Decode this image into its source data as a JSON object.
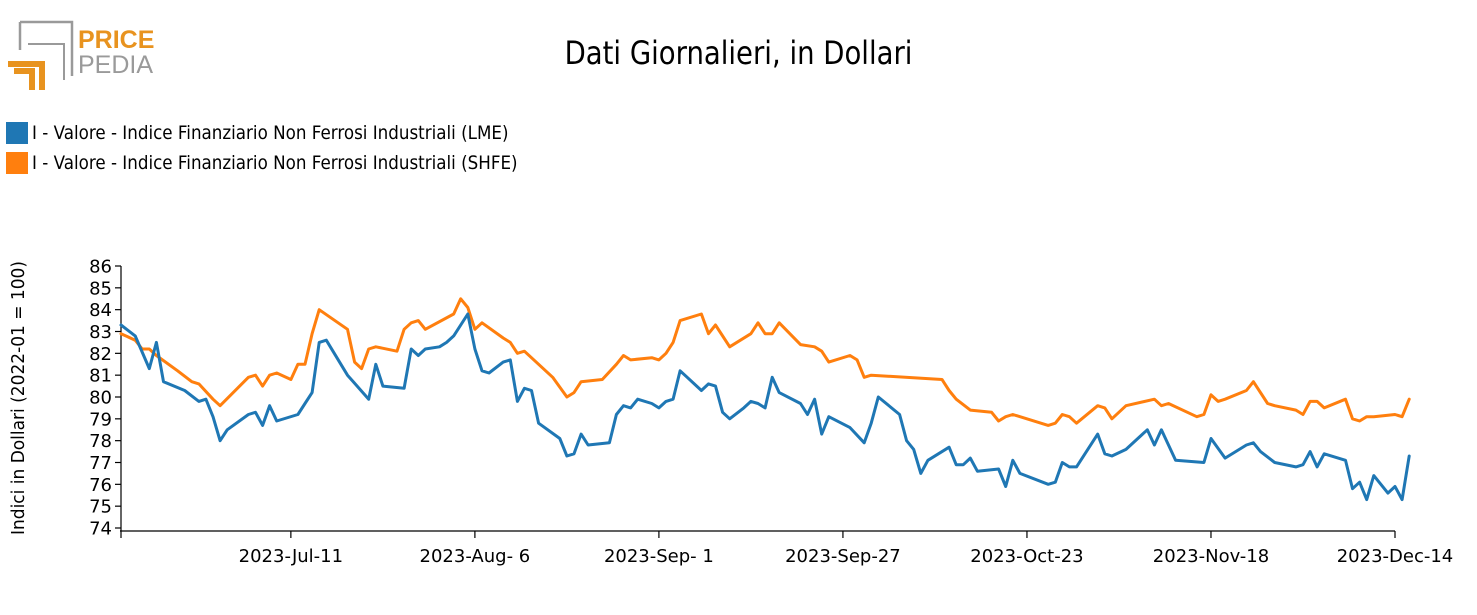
{
  "logo": {
    "line1": "PRICE",
    "line2": "PEDIA"
  },
  "colors": {
    "lme": "#1f77b4",
    "shfe": "#ff7f0e",
    "logo_orange": "#e8931f",
    "logo_grey": "#9a9a9a"
  },
  "chart_data": {
    "type": "line",
    "title": "Dati Giornalieri, in Dollari",
    "ylabel": "Indici in Dollari (2022-01 = 100)",
    "xlabel": "",
    "ylim": [
      74,
      86
    ],
    "yticks": [
      "74",
      "75",
      "76",
      "77",
      "78",
      "79",
      "80",
      "81",
      "82",
      "83",
      "84",
      "85",
      "86"
    ],
    "xlim": [
      "2023-06-17",
      "2023-12-14"
    ],
    "xticks": [
      {
        "date": "2023-07-11",
        "label": "2023-Jul-11"
      },
      {
        "date": "2023-08-06",
        "label": "2023-Aug- 6"
      },
      {
        "date": "2023-09-01",
        "label": "2023-Sep- 1"
      },
      {
        "date": "2023-09-27",
        "label": "2023-Sep-27"
      },
      {
        "date": "2023-10-23",
        "label": "2023-Oct-23"
      },
      {
        "date": "2023-11-18",
        "label": "2023-Nov-18"
      },
      {
        "date": "2023-12-14",
        "label": "2023-Dec-14"
      }
    ],
    "legend_position": "top-left",
    "series": [
      {
        "name": "I - Valore - Indice Finanziario Non Ferrosi Industriali (LME)",
        "color": "#1f77b4",
        "points": [
          [
            "2023-06-17",
            83.3
          ],
          [
            "2023-06-19",
            82.8
          ],
          [
            "2023-06-21",
            81.3
          ],
          [
            "2023-06-22",
            82.5
          ],
          [
            "2023-06-23",
            80.7
          ],
          [
            "2023-06-26",
            80.3
          ],
          [
            "2023-06-28",
            79.8
          ],
          [
            "2023-06-29",
            79.9
          ],
          [
            "2023-06-30",
            79.1
          ],
          [
            "2023-07-01",
            78.0
          ],
          [
            "2023-07-02",
            78.5
          ],
          [
            "2023-07-05",
            79.2
          ],
          [
            "2023-07-06",
            79.3
          ],
          [
            "2023-07-07",
            78.7
          ],
          [
            "2023-07-08",
            79.6
          ],
          [
            "2023-07-09",
            78.9
          ],
          [
            "2023-07-12",
            79.2
          ],
          [
            "2023-07-13",
            79.7
          ],
          [
            "2023-07-14",
            80.2
          ],
          [
            "2023-07-15",
            82.5
          ],
          [
            "2023-07-16",
            82.6
          ],
          [
            "2023-07-19",
            81.0
          ],
          [
            "2023-07-22",
            79.9
          ],
          [
            "2023-07-23",
            81.5
          ],
          [
            "2023-07-24",
            80.5
          ],
          [
            "2023-07-27",
            80.4
          ],
          [
            "2023-07-28",
            82.2
          ],
          [
            "2023-07-29",
            81.9
          ],
          [
            "2023-07-30",
            82.2
          ],
          [
            "2023-08-01",
            82.3
          ],
          [
            "2023-08-02",
            82.5
          ],
          [
            "2023-08-03",
            82.8
          ],
          [
            "2023-08-05",
            83.8
          ],
          [
            "2023-08-06",
            82.2
          ],
          [
            "2023-08-07",
            81.2
          ],
          [
            "2023-08-08",
            81.1
          ],
          [
            "2023-08-10",
            81.6
          ],
          [
            "2023-08-11",
            81.7
          ],
          [
            "2023-08-12",
            79.8
          ],
          [
            "2023-08-13",
            80.4
          ],
          [
            "2023-08-14",
            80.3
          ],
          [
            "2023-08-15",
            78.8
          ],
          [
            "2023-08-18",
            78.1
          ],
          [
            "2023-08-19",
            77.3
          ],
          [
            "2023-08-20",
            77.4
          ],
          [
            "2023-08-21",
            78.3
          ],
          [
            "2023-08-22",
            77.8
          ],
          [
            "2023-08-25",
            77.9
          ],
          [
            "2023-08-26",
            79.2
          ],
          [
            "2023-08-27",
            79.6
          ],
          [
            "2023-08-28",
            79.5
          ],
          [
            "2023-08-29",
            79.9
          ],
          [
            "2023-08-31",
            79.7
          ],
          [
            "2023-09-01",
            79.5
          ],
          [
            "2023-09-02",
            79.8
          ],
          [
            "2023-09-03",
            79.9
          ],
          [
            "2023-09-04",
            81.2
          ],
          [
            "2023-09-05",
            80.9
          ],
          [
            "2023-09-07",
            80.3
          ],
          [
            "2023-09-08",
            80.6
          ],
          [
            "2023-09-09",
            80.5
          ],
          [
            "2023-09-10",
            79.3
          ],
          [
            "2023-09-11",
            79.0
          ],
          [
            "2023-09-13",
            79.5
          ],
          [
            "2023-09-14",
            79.8
          ],
          [
            "2023-09-15",
            79.7
          ],
          [
            "2023-09-16",
            79.5
          ],
          [
            "2023-09-17",
            80.9
          ],
          [
            "2023-09-18",
            80.2
          ],
          [
            "2023-09-21",
            79.7
          ],
          [
            "2023-09-22",
            79.2
          ],
          [
            "2023-09-23",
            79.9
          ],
          [
            "2023-09-24",
            78.3
          ],
          [
            "2023-09-25",
            79.1
          ],
          [
            "2023-09-28",
            78.6
          ],
          [
            "2023-09-30",
            77.9
          ],
          [
            "2023-10-01",
            78.8
          ],
          [
            "2023-10-02",
            80.0
          ],
          [
            "2023-10-05",
            79.2
          ],
          [
            "2023-10-06",
            78.0
          ],
          [
            "2023-10-07",
            77.6
          ],
          [
            "2023-10-08",
            76.5
          ],
          [
            "2023-10-09",
            77.1
          ],
          [
            "2023-10-12",
            77.7
          ],
          [
            "2023-10-13",
            76.9
          ],
          [
            "2023-10-14",
            76.9
          ],
          [
            "2023-10-15",
            77.2
          ],
          [
            "2023-10-16",
            76.6
          ],
          [
            "2023-10-19",
            76.7
          ],
          [
            "2023-10-20",
            75.9
          ],
          [
            "2023-10-21",
            77.1
          ],
          [
            "2023-10-22",
            76.5
          ],
          [
            "2023-10-26",
            76.0
          ],
          [
            "2023-10-27",
            76.1
          ],
          [
            "2023-10-28",
            77.0
          ],
          [
            "2023-10-29",
            76.8
          ],
          [
            "2023-10-30",
            76.8
          ],
          [
            "2023-11-02",
            78.3
          ],
          [
            "2023-11-03",
            77.4
          ],
          [
            "2023-11-04",
            77.3
          ],
          [
            "2023-11-06",
            77.6
          ],
          [
            "2023-11-09",
            78.5
          ],
          [
            "2023-11-10",
            77.8
          ],
          [
            "2023-11-11",
            78.5
          ],
          [
            "2023-11-13",
            77.1
          ],
          [
            "2023-11-17",
            77.0
          ],
          [
            "2023-11-18",
            78.1
          ],
          [
            "2023-11-20",
            77.2
          ],
          [
            "2023-11-23",
            77.8
          ],
          [
            "2023-11-24",
            77.9
          ],
          [
            "2023-11-25",
            77.5
          ],
          [
            "2023-11-27",
            77.0
          ],
          [
            "2023-11-30",
            76.8
          ],
          [
            "2023-12-01",
            76.9
          ],
          [
            "2023-12-02",
            77.5
          ],
          [
            "2023-12-03",
            76.8
          ],
          [
            "2023-12-04",
            77.4
          ],
          [
            "2023-12-07",
            77.1
          ],
          [
            "2023-12-08",
            75.8
          ],
          [
            "2023-12-09",
            76.1
          ],
          [
            "2023-12-10",
            75.3
          ],
          [
            "2023-12-11",
            76.4
          ],
          [
            "2023-12-13",
            75.6
          ],
          [
            "2023-12-14",
            75.9
          ],
          [
            "2023-12-15",
            75.3
          ],
          [
            "2023-12-16",
            77.3
          ]
        ]
      },
      {
        "name": "I - Valore - Indice Finanziario Non Ferrosi Industriali (SHFE)",
        "color": "#ff7f0e",
        "points": [
          [
            "2023-06-17",
            82.9
          ],
          [
            "2023-06-19",
            82.6
          ],
          [
            "2023-06-20",
            82.2
          ],
          [
            "2023-06-21",
            82.2
          ],
          [
            "2023-06-22",
            81.9
          ],
          [
            "2023-06-25",
            81.2
          ],
          [
            "2023-06-27",
            80.7
          ],
          [
            "2023-06-28",
            80.6
          ],
          [
            "2023-06-30",
            79.9
          ],
          [
            "2023-07-01",
            79.6
          ],
          [
            "2023-07-05",
            80.9
          ],
          [
            "2023-07-06",
            81.0
          ],
          [
            "2023-07-07",
            80.5
          ],
          [
            "2023-07-08",
            81.0
          ],
          [
            "2023-07-09",
            81.1
          ],
          [
            "2023-07-11",
            80.8
          ],
          [
            "2023-07-12",
            81.5
          ],
          [
            "2023-07-13",
            81.5
          ],
          [
            "2023-07-14",
            82.9
          ],
          [
            "2023-07-15",
            84.0
          ],
          [
            "2023-07-19",
            83.1
          ],
          [
            "2023-07-20",
            81.6
          ],
          [
            "2023-07-21",
            81.3
          ],
          [
            "2023-07-22",
            82.2
          ],
          [
            "2023-07-23",
            82.3
          ],
          [
            "2023-07-26",
            82.1
          ],
          [
            "2023-07-27",
            83.1
          ],
          [
            "2023-07-28",
            83.4
          ],
          [
            "2023-07-29",
            83.5
          ],
          [
            "2023-07-30",
            83.1
          ],
          [
            "2023-08-03",
            83.8
          ],
          [
            "2023-08-04",
            84.5
          ],
          [
            "2023-08-05",
            84.1
          ],
          [
            "2023-08-06",
            83.1
          ],
          [
            "2023-08-07",
            83.4
          ],
          [
            "2023-08-10",
            82.7
          ],
          [
            "2023-08-11",
            82.5
          ],
          [
            "2023-08-12",
            82.0
          ],
          [
            "2023-08-13",
            82.1
          ],
          [
            "2023-08-17",
            80.9
          ],
          [
            "2023-08-19",
            80.0
          ],
          [
            "2023-08-20",
            80.2
          ],
          [
            "2023-08-21",
            80.7
          ],
          [
            "2023-08-24",
            80.8
          ],
          [
            "2023-08-26",
            81.5
          ],
          [
            "2023-08-27",
            81.9
          ],
          [
            "2023-08-28",
            81.7
          ],
          [
            "2023-08-31",
            81.8
          ],
          [
            "2023-09-01",
            81.7
          ],
          [
            "2023-09-02",
            82.0
          ],
          [
            "2023-09-03",
            82.5
          ],
          [
            "2023-09-04",
            83.5
          ],
          [
            "2023-09-07",
            83.8
          ],
          [
            "2023-09-08",
            82.9
          ],
          [
            "2023-09-09",
            83.3
          ],
          [
            "2023-09-11",
            82.3
          ],
          [
            "2023-09-14",
            82.9
          ],
          [
            "2023-09-15",
            83.4
          ],
          [
            "2023-09-16",
            82.9
          ],
          [
            "2023-09-17",
            82.9
          ],
          [
            "2023-09-18",
            83.4
          ],
          [
            "2023-09-21",
            82.4
          ],
          [
            "2023-09-23",
            82.3
          ],
          [
            "2023-09-24",
            82.1
          ],
          [
            "2023-09-25",
            81.6
          ],
          [
            "2023-09-28",
            81.9
          ],
          [
            "2023-09-29",
            81.7
          ],
          [
            "2023-09-30",
            80.9
          ],
          [
            "2023-10-01",
            81.0
          ],
          [
            "2023-10-11",
            80.8
          ],
          [
            "2023-10-12",
            80.3
          ],
          [
            "2023-10-13",
            79.9
          ],
          [
            "2023-10-15",
            79.4
          ],
          [
            "2023-10-18",
            79.3
          ],
          [
            "2023-10-19",
            78.9
          ],
          [
            "2023-10-20",
            79.1
          ],
          [
            "2023-10-21",
            79.2
          ],
          [
            "2023-10-26",
            78.7
          ],
          [
            "2023-10-27",
            78.8
          ],
          [
            "2023-10-28",
            79.2
          ],
          [
            "2023-10-29",
            79.1
          ],
          [
            "2023-10-30",
            78.8
          ],
          [
            "2023-11-02",
            79.6
          ],
          [
            "2023-11-03",
            79.5
          ],
          [
            "2023-11-04",
            79.0
          ],
          [
            "2023-11-06",
            79.6
          ],
          [
            "2023-11-10",
            79.9
          ],
          [
            "2023-11-11",
            79.6
          ],
          [
            "2023-11-12",
            79.7
          ],
          [
            "2023-11-16",
            79.1
          ],
          [
            "2023-11-17",
            79.2
          ],
          [
            "2023-11-18",
            80.1
          ],
          [
            "2023-11-19",
            79.8
          ],
          [
            "2023-11-20",
            79.9
          ],
          [
            "2023-11-23",
            80.3
          ],
          [
            "2023-11-24",
            80.7
          ],
          [
            "2023-11-26",
            79.7
          ],
          [
            "2023-11-27",
            79.6
          ],
          [
            "2023-11-30",
            79.4
          ],
          [
            "2023-12-01",
            79.2
          ],
          [
            "2023-12-02",
            79.8
          ],
          [
            "2023-12-03",
            79.8
          ],
          [
            "2023-12-04",
            79.5
          ],
          [
            "2023-12-07",
            79.9
          ],
          [
            "2023-12-08",
            79.0
          ],
          [
            "2023-12-09",
            78.9
          ],
          [
            "2023-12-10",
            79.1
          ],
          [
            "2023-12-11",
            79.1
          ],
          [
            "2023-12-14",
            79.2
          ],
          [
            "2023-12-15",
            79.1
          ],
          [
            "2023-12-16",
            79.9
          ]
        ]
      }
    ]
  }
}
